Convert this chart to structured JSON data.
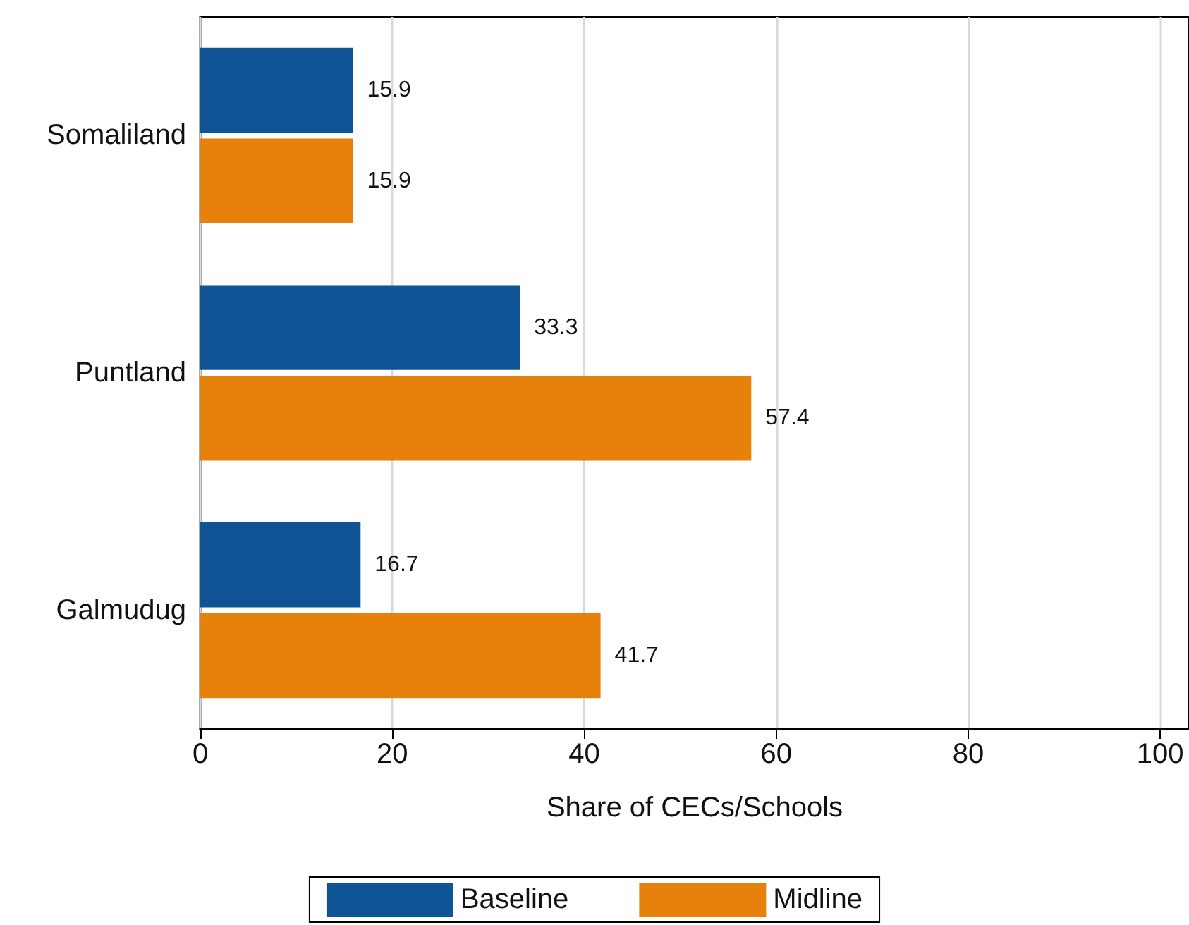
{
  "chart_data": {
    "type": "bar",
    "orientation": "horizontal",
    "xlabel": "Share of CECs/Schools",
    "categories": [
      "Somaliland",
      "Puntland",
      "Galmudug"
    ],
    "series": [
      {
        "name": "Baseline",
        "color": "#0f5596",
        "values": [
          15.9,
          33.3,
          16.7
        ]
      },
      {
        "name": "Midline",
        "color": "#e6820c",
        "values": [
          15.9,
          57.4,
          41.7
        ]
      }
    ],
    "xlim": [
      0,
      103
    ],
    "xticks": [
      0,
      20,
      40,
      60,
      80,
      100
    ],
    "grid": "x",
    "legend": "bottom",
    "data_labels": true
  }
}
